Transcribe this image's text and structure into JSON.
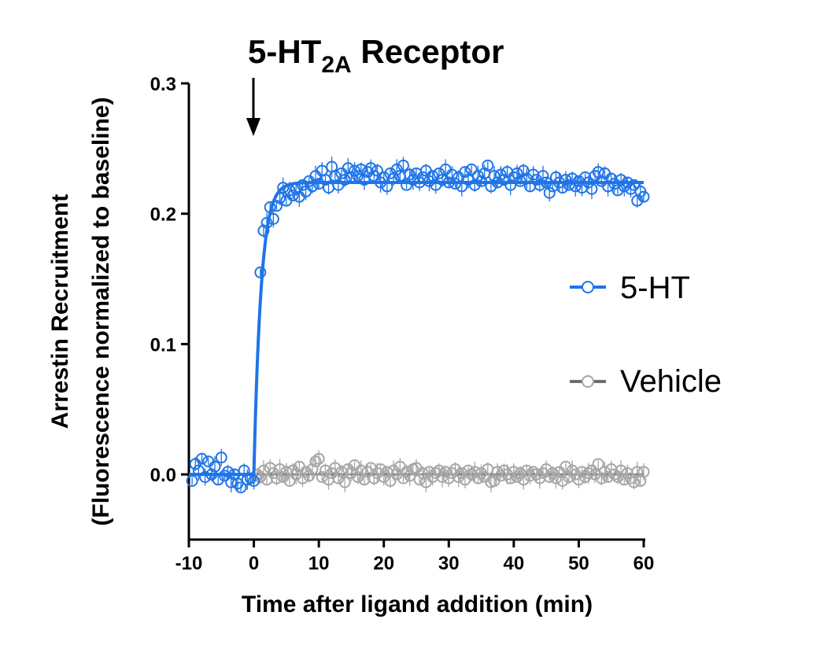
{
  "chart_data": {
    "type": "scatter",
    "title": {
      "prefix": "5-HT",
      "subscript": "2A",
      "suffix": " Receptor"
    },
    "xlabel": "Time after ligand addition (min)",
    "ylabel": "Arrestin Recruitment",
    "ylabel2": "(Fluorescence normalized to baseline)",
    "xlim": [
      -10,
      60
    ],
    "ylim": [
      -0.05,
      0.3
    ],
    "xticks": [
      -10,
      0,
      10,
      20,
      30,
      40,
      50,
      60
    ],
    "xtick_labels": [
      "-10",
      "0",
      "10",
      "20",
      "30",
      "40",
      "50",
      "60"
    ],
    "yticks": [
      0.0,
      0.1,
      0.2,
      0.3
    ],
    "ytick_labels": [
      "0.0",
      "0.1",
      "0.2",
      "0.3"
    ],
    "annotation": {
      "type": "arrow-down",
      "x": 0
    },
    "legend": {
      "position": "right"
    },
    "series": [
      {
        "name": "5-HT",
        "color": "#1f74e8",
        "marker": "open-circle",
        "fit": {
          "type": "one-phase-association",
          "baseline": 0.0,
          "plateau": 0.224,
          "k": 0.9,
          "x0": 0
        },
        "points": [
          [
            -9.5,
            -0.005
          ],
          [
            -9.0,
            0.008
          ],
          [
            -8.5,
            0.003
          ],
          [
            -8.0,
            0.012
          ],
          [
            -7.5,
            -0.002
          ],
          [
            -7.0,
            0.01
          ],
          [
            -6.5,
            0.0
          ],
          [
            -6.0,
            0.006
          ],
          [
            -5.5,
            -0.004
          ],
          [
            -5.0,
            0.013
          ],
          [
            -4.5,
            -0.001
          ],
          [
            -4.0,
            0.002
          ],
          [
            -3.5,
            -0.006
          ],
          [
            -3.0,
            0.0
          ],
          [
            -2.5,
            -0.007
          ],
          [
            -2.0,
            -0.01
          ],
          [
            -1.5,
            0.003
          ],
          [
            -1.0,
            -0.004
          ],
          [
            -0.5,
            -0.003
          ],
          [
            0.0,
            -0.005
          ],
          [
            1.0,
            0.155
          ],
          [
            1.5,
            0.187
          ],
          [
            2.0,
            0.193
          ],
          [
            2.5,
            0.205
          ],
          [
            3.0,
            0.196
          ],
          [
            3.5,
            0.206
          ],
          [
            4.0,
            0.212
          ],
          [
            4.5,
            0.22
          ],
          [
            5.0,
            0.21
          ],
          [
            5.5,
            0.218
          ],
          [
            6.0,
            0.214
          ],
          [
            6.5,
            0.219
          ],
          [
            7.0,
            0.213
          ],
          [
            7.5,
            0.222
          ],
          [
            8.0,
            0.217
          ],
          [
            8.5,
            0.225
          ],
          [
            9.0,
            0.221
          ],
          [
            9.5,
            0.229
          ],
          [
            10.0,
            0.223
          ],
          [
            10.5,
            0.233
          ],
          [
            11.0,
            0.226
          ],
          [
            11.5,
            0.22
          ],
          [
            12.0,
            0.236
          ],
          [
            12.5,
            0.229
          ],
          [
            13.0,
            0.222
          ],
          [
            13.5,
            0.231
          ],
          [
            14.0,
            0.226
          ],
          [
            14.5,
            0.235
          ],
          [
            15.0,
            0.228
          ],
          [
            15.5,
            0.233
          ],
          [
            16.0,
            0.229
          ],
          [
            16.5,
            0.234
          ],
          [
            17.0,
            0.226
          ],
          [
            17.5,
            0.232
          ],
          [
            18.0,
            0.235
          ],
          [
            18.5,
            0.229
          ],
          [
            19.0,
            0.233
          ],
          [
            19.5,
            0.224
          ],
          [
            20.0,
            0.228
          ],
          [
            20.5,
            0.221
          ],
          [
            21.0,
            0.231
          ],
          [
            21.5,
            0.227
          ],
          [
            22.0,
            0.234
          ],
          [
            22.5,
            0.229
          ],
          [
            23.0,
            0.237
          ],
          [
            23.5,
            0.222
          ],
          [
            24.0,
            0.23
          ],
          [
            24.5,
            0.226
          ],
          [
            25.0,
            0.231
          ],
          [
            25.5,
            0.224
          ],
          [
            26.0,
            0.228
          ],
          [
            26.5,
            0.233
          ],
          [
            27.0,
            0.225
          ],
          [
            27.5,
            0.229
          ],
          [
            28.0,
            0.222
          ],
          [
            28.5,
            0.231
          ],
          [
            29.0,
            0.226
          ],
          [
            29.5,
            0.234
          ],
          [
            30.0,
            0.224
          ],
          [
            30.5,
            0.23
          ],
          [
            31.0,
            0.223
          ],
          [
            31.5,
            0.228
          ],
          [
            32.0,
            0.221
          ],
          [
            32.5,
            0.232
          ],
          [
            33.0,
            0.226
          ],
          [
            33.5,
            0.234
          ],
          [
            34.0,
            0.222
          ],
          [
            34.5,
            0.229
          ],
          [
            35.0,
            0.225
          ],
          [
            35.5,
            0.231
          ],
          [
            36.0,
            0.237
          ],
          [
            36.5,
            0.221
          ],
          [
            37.0,
            0.229
          ],
          [
            37.5,
            0.224
          ],
          [
            38.0,
            0.23
          ],
          [
            38.5,
            0.226
          ],
          [
            39.0,
            0.232
          ],
          [
            39.5,
            0.222
          ],
          [
            40.0,
            0.228
          ],
          [
            40.5,
            0.231
          ],
          [
            41.0,
            0.225
          ],
          [
            41.5,
            0.233
          ],
          [
            42.0,
            0.227
          ],
          [
            42.5,
            0.221
          ],
          [
            43.0,
            0.23
          ],
          [
            43.5,
            0.226
          ],
          [
            44.0,
            0.222
          ],
          [
            44.5,
            0.229
          ],
          [
            45.0,
            0.224
          ],
          [
            45.5,
            0.216
          ],
          [
            46.0,
            0.221
          ],
          [
            46.5,
            0.228
          ],
          [
            47.0,
            0.224
          ],
          [
            47.5,
            0.22
          ],
          [
            48.0,
            0.226
          ],
          [
            48.5,
            0.222
          ],
          [
            49.0,
            0.227
          ],
          [
            49.5,
            0.221
          ],
          [
            50.0,
            0.225
          ],
          [
            50.5,
            0.22
          ],
          [
            51.0,
            0.228
          ],
          [
            51.5,
            0.224
          ],
          [
            52.0,
            0.219
          ],
          [
            52.5,
            0.229
          ],
          [
            53.0,
            0.232
          ],
          [
            53.5,
            0.225
          ],
          [
            54.0,
            0.231
          ],
          [
            54.5,
            0.221
          ],
          [
            55.0,
            0.227
          ],
          [
            55.5,
            0.223
          ],
          [
            56.0,
            0.218
          ],
          [
            56.5,
            0.226
          ],
          [
            57.0,
            0.221
          ],
          [
            57.5,
            0.224
          ],
          [
            58.0,
            0.219
          ],
          [
            58.5,
            0.222
          ],
          [
            59.0,
            0.21
          ],
          [
            59.5,
            0.217
          ],
          [
            60.0,
            0.213
          ]
        ]
      },
      {
        "name": "Vehicle",
        "color": "#a6a6a6",
        "marker": "open-circle",
        "fit": {
          "type": "constant",
          "value": 0.0
        },
        "points": [
          [
            0.5,
            0.0
          ],
          [
            1.0,
            -0.002
          ],
          [
            1.5,
            0.003
          ],
          [
            2.0,
            -0.004
          ],
          [
            2.5,
            0.005
          ],
          [
            3.0,
            0.001
          ],
          [
            3.5,
            -0.003
          ],
          [
            4.0,
            0.004
          ],
          [
            4.5,
            -0.002
          ],
          [
            5.0,
            0.002
          ],
          [
            5.5,
            -0.005
          ],
          [
            6.0,
            0.003
          ],
          [
            6.5,
            0.0
          ],
          [
            7.0,
            0.006
          ],
          [
            7.5,
            -0.003
          ],
          [
            8.0,
            0.002
          ],
          [
            8.5,
            -0.001
          ],
          [
            9.0,
            0.004
          ],
          [
            9.5,
            0.01
          ],
          [
            10.0,
            0.012
          ],
          [
            10.5,
            -0.002
          ],
          [
            11.0,
            0.003
          ],
          [
            11.5,
            -0.004
          ],
          [
            12.0,
            0.001
          ],
          [
            12.5,
            0.005
          ],
          [
            13.0,
            -0.003
          ],
          [
            13.5,
            0.002
          ],
          [
            14.0,
            -0.006
          ],
          [
            14.5,
            0.004
          ],
          [
            15.0,
            0.001
          ],
          [
            15.5,
            0.007
          ],
          [
            16.0,
            -0.002
          ],
          [
            16.5,
            0.003
          ],
          [
            17.0,
            -0.004
          ],
          [
            17.5,
            0.002
          ],
          [
            18.0,
            0.005
          ],
          [
            18.5,
            -0.003
          ],
          [
            19.0,
            0.001
          ],
          [
            19.5,
            0.004
          ],
          [
            20.0,
            -0.002
          ],
          [
            20.5,
            0.002
          ],
          [
            21.0,
            -0.005
          ],
          [
            21.5,
            0.003
          ],
          [
            22.0,
            0.0
          ],
          [
            22.5,
            0.006
          ],
          [
            23.0,
            -0.003
          ],
          [
            23.5,
            0.002
          ],
          [
            24.0,
            -0.001
          ],
          [
            24.5,
            0.004
          ],
          [
            25.0,
            0.005
          ],
          [
            25.5,
            -0.004
          ],
          [
            26.0,
            0.001
          ],
          [
            26.5,
            -0.006
          ],
          [
            27.0,
            0.002
          ],
          [
            27.5,
            -0.002
          ],
          [
            28.0,
            0.001
          ],
          [
            28.5,
            0.003
          ],
          [
            29.0,
            -0.002
          ],
          [
            29.5,
            0.002
          ],
          [
            30.0,
            -0.003
          ],
          [
            30.5,
            0.001
          ],
          [
            31.0,
            0.004
          ],
          [
            31.5,
            -0.002
          ],
          [
            32.0,
            0.001
          ],
          [
            32.5,
            -0.004
          ],
          [
            33.0,
            0.003
          ],
          [
            33.5,
            0.0
          ],
          [
            34.0,
            0.002
          ],
          [
            34.5,
            -0.003
          ],
          [
            35.0,
            0.001
          ],
          [
            35.5,
            -0.002
          ],
          [
            36.0,
            0.004
          ],
          [
            36.5,
            -0.006
          ],
          [
            37.0,
            -0.005
          ],
          [
            37.5,
            0.002
          ],
          [
            38.0,
            -0.001
          ],
          [
            38.5,
            0.003
          ],
          [
            39.0,
            0.0
          ],
          [
            39.5,
            -0.003
          ],
          [
            40.0,
            0.002
          ],
          [
            40.5,
            -0.002
          ],
          [
            41.0,
            0.001
          ],
          [
            41.5,
            -0.004
          ],
          [
            42.0,
            0.003
          ],
          [
            42.5,
            -0.001
          ],
          [
            43.0,
            0.002
          ],
          [
            43.5,
            0.0
          ],
          [
            44.0,
            -0.003
          ],
          [
            44.5,
            0.001
          ],
          [
            45.0,
            0.004
          ],
          [
            45.5,
            -0.002
          ],
          [
            46.0,
            0.001
          ],
          [
            46.5,
            -0.003
          ],
          [
            47.0,
            0.002
          ],
          [
            47.5,
            -0.005
          ],
          [
            48.0,
            0.006
          ],
          [
            48.5,
            -0.002
          ],
          [
            49.0,
            0.003
          ],
          [
            49.5,
            0.0
          ],
          [
            50.0,
            -0.004
          ],
          [
            50.5,
            0.002
          ],
          [
            51.0,
            -0.002
          ],
          [
            51.5,
            0.001
          ],
          [
            52.0,
            0.003
          ],
          [
            52.5,
            0.0
          ],
          [
            53.0,
            0.008
          ],
          [
            53.5,
            -0.003
          ],
          [
            54.0,
            0.002
          ],
          [
            54.5,
            -0.002
          ],
          [
            55.0,
            0.004
          ],
          [
            55.5,
            0.0
          ],
          [
            56.0,
            -0.002
          ],
          [
            56.5,
            0.003
          ],
          [
            57.0,
            -0.004
          ],
          [
            57.5,
            0.001
          ],
          [
            58.0,
            -0.003
          ],
          [
            58.5,
            -0.006
          ],
          [
            59.0,
            0.002
          ],
          [
            59.5,
            -0.005
          ],
          [
            60.0,
            0.002
          ]
        ]
      }
    ]
  }
}
